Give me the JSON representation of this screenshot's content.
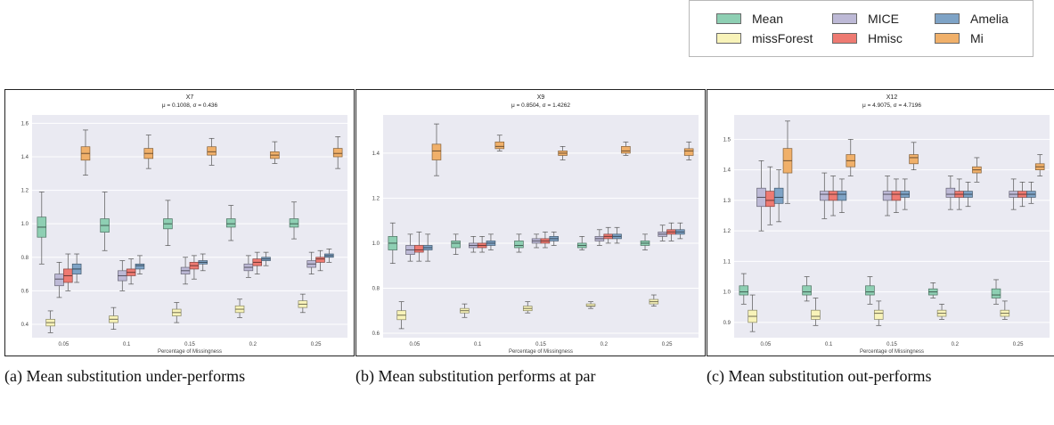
{
  "legend": {
    "items": [
      {
        "label": "Mean",
        "color": "#8ecfb3"
      },
      {
        "label": "MICE",
        "color": "#bdb9d6"
      },
      {
        "label": "Amelia",
        "color": "#7ea3c6"
      },
      {
        "label": "missForest",
        "color": "#f8f3b9"
      },
      {
        "label": "Hmisc",
        "color": "#ee7a72"
      },
      {
        "label": "Mi",
        "color": "#f0b06a"
      }
    ]
  },
  "captions": [
    {
      "letter": "(a)",
      "text": "Mean substitution under-performs"
    },
    {
      "letter": "(b)",
      "text": "Mean substitution performs at par"
    },
    {
      "letter": "(c)",
      "text": "Mean substitution out-performs"
    }
  ],
  "chart_data": [
    {
      "type": "box",
      "title": "X7",
      "subtitle": "μ = 0.1008, σ = 0.436",
      "xlabel": "Percentage of Missingness",
      "ylabel": "",
      "categories": [
        "0.05",
        "0.1",
        "0.15",
        "0.2",
        "0.25"
      ],
      "ylim": [
        0.32,
        1.65
      ],
      "yticks": [
        "0.4",
        "0.6",
        "0.8",
        "1.0",
        "1.2",
        "1.4",
        "1.6"
      ],
      "ytick_values": [
        0.4,
        0.6,
        0.8,
        1.0,
        1.2,
        1.4,
        1.6
      ],
      "series": [
        {
          "name": "Mean",
          "color": "#8ecfb3",
          "boxes": [
            [
              0.76,
              0.92,
              0.98,
              1.04,
              1.19
            ],
            [
              0.84,
              0.95,
              0.99,
              1.03,
              1.19
            ],
            [
              0.87,
              0.97,
              1.0,
              1.03,
              1.14
            ],
            [
              0.9,
              0.98,
              1.0,
              1.03,
              1.11
            ],
            [
              0.91,
              0.98,
              1.0,
              1.03,
              1.13
            ]
          ]
        },
        {
          "name": "missForest",
          "color": "#f8f3b9",
          "boxes": [
            [
              0.35,
              0.39,
              0.41,
              0.43,
              0.48
            ],
            [
              0.37,
              0.41,
              0.43,
              0.45,
              0.5
            ],
            [
              0.41,
              0.45,
              0.47,
              0.49,
              0.53
            ],
            [
              0.44,
              0.47,
              0.49,
              0.51,
              0.55
            ],
            [
              0.47,
              0.5,
              0.52,
              0.54,
              0.58
            ]
          ]
        },
        {
          "name": "MICE",
          "color": "#bdb9d6",
          "boxes": [
            [
              0.56,
              0.63,
              0.67,
              0.7,
              0.77
            ],
            [
              0.6,
              0.66,
              0.69,
              0.72,
              0.78
            ],
            [
              0.64,
              0.7,
              0.72,
              0.74,
              0.8
            ],
            [
              0.68,
              0.72,
              0.74,
              0.76,
              0.81
            ],
            [
              0.7,
              0.74,
              0.76,
              0.78,
              0.83
            ]
          ]
        },
        {
          "name": "Hmisc",
          "color": "#ee7a72",
          "boxes": [
            [
              0.6,
              0.65,
              0.69,
              0.73,
              0.82
            ],
            [
              0.64,
              0.69,
              0.71,
              0.73,
              0.79
            ],
            [
              0.67,
              0.73,
              0.75,
              0.77,
              0.81
            ],
            [
              0.7,
              0.75,
              0.77,
              0.79,
              0.83
            ],
            [
              0.72,
              0.77,
              0.79,
              0.8,
              0.84
            ]
          ]
        },
        {
          "name": "Amelia",
          "color": "#7ea3c6",
          "boxes": [
            [
              0.65,
              0.7,
              0.73,
              0.76,
              0.82
            ],
            [
              0.7,
              0.73,
              0.75,
              0.76,
              0.81
            ],
            [
              0.72,
              0.76,
              0.77,
              0.78,
              0.82
            ],
            [
              0.75,
              0.78,
              0.79,
              0.8,
              0.83
            ],
            [
              0.77,
              0.8,
              0.81,
              0.82,
              0.85
            ]
          ]
        },
        {
          "name": "Mi",
          "color": "#f0b06a",
          "boxes": [
            [
              1.29,
              1.38,
              1.42,
              1.46,
              1.56
            ],
            [
              1.33,
              1.39,
              1.42,
              1.45,
              1.53
            ],
            [
              1.35,
              1.41,
              1.43,
              1.46,
              1.51
            ],
            [
              1.36,
              1.39,
              1.41,
              1.43,
              1.49
            ],
            [
              1.33,
              1.4,
              1.42,
              1.45,
              1.52
            ]
          ]
        }
      ]
    },
    {
      "type": "box",
      "title": "X9",
      "subtitle": "μ = 0.8504, σ = 1.4262",
      "xlabel": "Percentage of Missingness",
      "ylabel": "",
      "categories": [
        "0.05",
        "0.1",
        "0.15",
        "0.2",
        "0.25"
      ],
      "ylim": [
        0.58,
        1.57
      ],
      "yticks": [
        "0.6",
        "0.8",
        "1.0",
        "1.2",
        "1.4"
      ],
      "ytick_values": [
        0.6,
        0.8,
        1.0,
        1.2,
        1.4
      ],
      "series": [
        {
          "name": "Mean",
          "color": "#8ecfb3",
          "boxes": [
            [
              0.91,
              0.97,
              1.0,
              1.03,
              1.09
            ],
            [
              0.95,
              0.98,
              1.0,
              1.01,
              1.04
            ],
            [
              0.96,
              0.98,
              0.99,
              1.01,
              1.04
            ],
            [
              0.97,
              0.98,
              0.99,
              1.0,
              1.03
            ],
            [
              0.97,
              0.99,
              1.0,
              1.01,
              1.04
            ]
          ]
        },
        {
          "name": "missForest",
          "color": "#f8f3b9",
          "boxes": [
            [
              0.62,
              0.66,
              0.68,
              0.7,
              0.74
            ],
            [
              0.67,
              0.69,
              0.7,
              0.71,
              0.73
            ],
            [
              0.69,
              0.7,
              0.71,
              0.72,
              0.74
            ],
            [
              0.71,
              0.72,
              0.72,
              0.73,
              0.74
            ],
            [
              0.72,
              0.73,
              0.74,
              0.75,
              0.77
            ]
          ]
        },
        {
          "name": "MICE",
          "color": "#bdb9d6",
          "boxes": [
            [
              0.92,
              0.95,
              0.97,
              0.99,
              1.04
            ],
            [
              0.96,
              0.98,
              0.99,
              1.0,
              1.03
            ],
            [
              0.98,
              1.0,
              1.01,
              1.02,
              1.04
            ],
            [
              0.99,
              1.01,
              1.02,
              1.03,
              1.06
            ],
            [
              1.01,
              1.03,
              1.04,
              1.05,
              1.08
            ]
          ]
        },
        {
          "name": "Hmisc",
          "color": "#ee7a72",
          "boxes": [
            [
              0.92,
              0.96,
              0.97,
              0.99,
              1.05
            ],
            [
              0.96,
              0.98,
              0.99,
              1.0,
              1.03
            ],
            [
              0.98,
              1.0,
              1.01,
              1.02,
              1.05
            ],
            [
              1.0,
              1.02,
              1.03,
              1.04,
              1.07
            ],
            [
              1.01,
              1.04,
              1.05,
              1.06,
              1.09
            ]
          ]
        },
        {
          "name": "Amelia",
          "color": "#7ea3c6",
          "boxes": [
            [
              0.92,
              0.97,
              0.98,
              0.99,
              1.04
            ],
            [
              0.97,
              0.99,
              1.0,
              1.01,
              1.04
            ],
            [
              0.99,
              1.01,
              1.02,
              1.03,
              1.05
            ],
            [
              1.0,
              1.02,
              1.03,
              1.04,
              1.07
            ],
            [
              1.02,
              1.04,
              1.05,
              1.06,
              1.09
            ]
          ]
        },
        {
          "name": "Mi",
          "color": "#f0b06a",
          "boxes": [
            [
              1.3,
              1.37,
              1.41,
              1.44,
              1.53
            ],
            [
              1.41,
              1.42,
              1.43,
              1.45,
              1.48
            ],
            [
              1.37,
              1.39,
              1.4,
              1.41,
              1.43
            ],
            [
              1.39,
              1.4,
              1.41,
              1.43,
              1.45
            ],
            [
              1.37,
              1.39,
              1.41,
              1.42,
              1.45
            ]
          ]
        }
      ]
    },
    {
      "type": "box",
      "title": "X12",
      "subtitle": "μ = 4.9075, σ = 4.7196",
      "xlabel": "Percentage of Missingness",
      "ylabel": "",
      "categories": [
        "0.05",
        "0.1",
        "0.15",
        "0.2",
        "0.25"
      ],
      "ylim": [
        0.85,
        1.58
      ],
      "yticks": [
        "0.9",
        "1.0",
        "1.1",
        "1.2",
        "1.3",
        "1.4",
        "1.5"
      ],
      "ytick_values": [
        0.9,
        1.0,
        1.1,
        1.2,
        1.3,
        1.4,
        1.5
      ],
      "series": [
        {
          "name": "Mean",
          "color": "#8ecfb3",
          "boxes": [
            [
              0.96,
              0.99,
              1.0,
              1.02,
              1.06
            ],
            [
              0.97,
              0.99,
              1.0,
              1.02,
              1.05
            ],
            [
              0.96,
              0.99,
              1.0,
              1.02,
              1.05
            ],
            [
              0.98,
              0.99,
              1.0,
              1.01,
              1.03
            ],
            [
              0.96,
              0.98,
              0.99,
              1.01,
              1.04
            ]
          ]
        },
        {
          "name": "missForest",
          "color": "#f8f3b9",
          "boxes": [
            [
              0.87,
              0.9,
              0.92,
              0.94,
              0.99
            ],
            [
              0.89,
              0.91,
              0.92,
              0.94,
              0.98
            ],
            [
              0.89,
              0.91,
              0.93,
              0.94,
              0.97
            ],
            [
              0.91,
              0.92,
              0.93,
              0.94,
              0.96
            ],
            [
              0.91,
              0.92,
              0.93,
              0.94,
              0.97
            ]
          ]
        },
        {
          "name": "MICE",
          "color": "#bdb9d6",
          "boxes": [
            [
              1.2,
              1.28,
              1.31,
              1.34,
              1.43
            ],
            [
              1.24,
              1.3,
              1.32,
              1.33,
              1.39
            ],
            [
              1.25,
              1.3,
              1.32,
              1.33,
              1.38
            ],
            [
              1.27,
              1.31,
              1.32,
              1.34,
              1.38
            ],
            [
              1.27,
              1.31,
              1.32,
              1.33,
              1.37
            ]
          ]
        },
        {
          "name": "Hmisc",
          "color": "#ee7a72",
          "boxes": [
            [
              1.22,
              1.28,
              1.3,
              1.33,
              1.41
            ],
            [
              1.25,
              1.3,
              1.32,
              1.33,
              1.38
            ],
            [
              1.26,
              1.3,
              1.32,
              1.33,
              1.37
            ],
            [
              1.27,
              1.31,
              1.32,
              1.33,
              1.37
            ],
            [
              1.28,
              1.31,
              1.32,
              1.33,
              1.36
            ]
          ]
        },
        {
          "name": "Amelia",
          "color": "#7ea3c6",
          "boxes": [
            [
              1.23,
              1.29,
              1.31,
              1.34,
              1.4
            ],
            [
              1.26,
              1.3,
              1.32,
              1.33,
              1.37
            ],
            [
              1.27,
              1.31,
              1.32,
              1.33,
              1.37
            ],
            [
              1.28,
              1.31,
              1.32,
              1.33,
              1.36
            ],
            [
              1.29,
              1.31,
              1.32,
              1.33,
              1.36
            ]
          ]
        },
        {
          "name": "Mi",
          "color": "#f0b06a",
          "boxes": [
            [
              1.29,
              1.39,
              1.43,
              1.47,
              1.56
            ],
            [
              1.38,
              1.41,
              1.43,
              1.45,
              1.5
            ],
            [
              1.4,
              1.42,
              1.44,
              1.45,
              1.49
            ],
            [
              1.36,
              1.39,
              1.4,
              1.41,
              1.44
            ],
            [
              1.38,
              1.4,
              1.41,
              1.42,
              1.45
            ]
          ]
        }
      ]
    }
  ]
}
